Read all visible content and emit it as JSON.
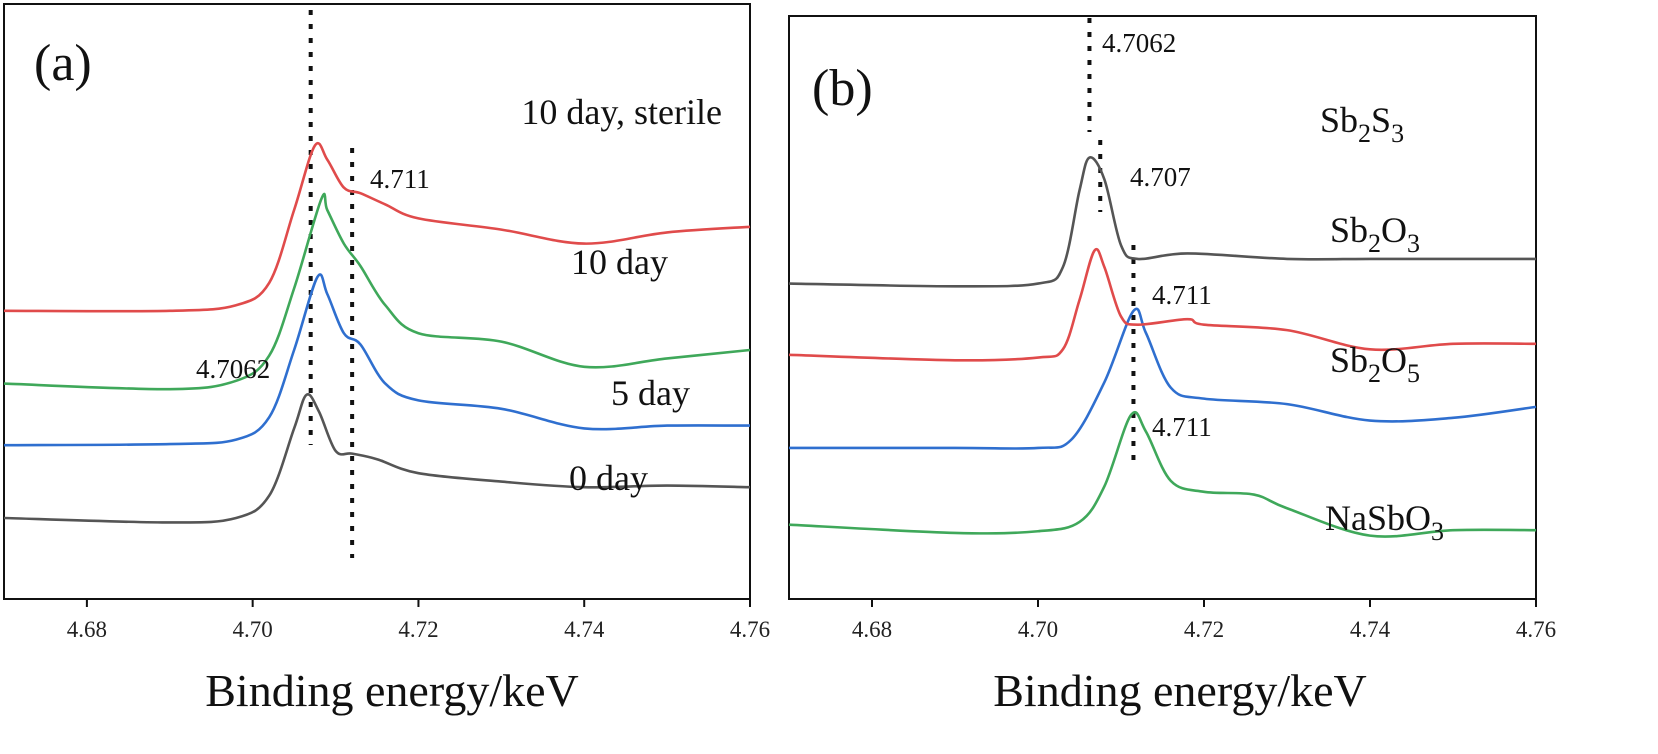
{
  "chart_data": [
    {
      "type": "line",
      "panel_label": "(a)",
      "xlabel": "Binding energy/keV",
      "ylabel": "",
      "xlim": [
        4.67,
        4.76
      ],
      "x_ticks": [
        4.68,
        4.7,
        4.72,
        4.74,
        4.76
      ],
      "x_tick_labels": [
        "4.68",
        "4.70",
        "4.72",
        "4.74",
        "4.76"
      ],
      "y_units": "normalized absorption (stacked, offsets applied)",
      "ylim": [
        0,
        10
      ],
      "series": [
        {
          "name": "0 day",
          "label": "0 day",
          "color": "#555555",
          "points": [
            [
              4.67,
              1.0
            ],
            [
              4.69,
              0.92
            ],
            [
              4.698,
              1.0
            ],
            [
              4.702,
              1.4
            ],
            [
              4.705,
              2.6
            ],
            [
              4.7065,
              3.2
            ],
            [
              4.708,
              2.9
            ],
            [
              4.71,
              2.2
            ],
            [
              4.712,
              2.15
            ],
            [
              4.715,
              2.05
            ],
            [
              4.72,
              1.8
            ],
            [
              4.73,
              1.65
            ],
            [
              4.74,
              1.55
            ],
            [
              4.75,
              1.58
            ],
            [
              4.76,
              1.55
            ]
          ]
        },
        {
          "name": "5 day",
          "label": "5 day",
          "color": "#2f6fcf",
          "points": [
            [
              4.67,
              2.3
            ],
            [
              4.69,
              2.32
            ],
            [
              4.698,
              2.4
            ],
            [
              4.702,
              2.8
            ],
            [
              4.705,
              4.0
            ],
            [
              4.7078,
              5.3
            ],
            [
              4.709,
              5.0
            ],
            [
              4.711,
              4.3
            ],
            [
              4.713,
              4.1
            ],
            [
              4.716,
              3.4
            ],
            [
              4.72,
              3.1
            ],
            [
              4.73,
              2.95
            ],
            [
              4.74,
              2.6
            ],
            [
              4.75,
              2.65
            ],
            [
              4.76,
              2.65
            ]
          ]
        },
        {
          "name": "10 day",
          "label": "10 day",
          "color": "#3fa85a",
          "points": [
            [
              4.67,
              3.4
            ],
            [
              4.69,
              3.3
            ],
            [
              4.698,
              3.45
            ],
            [
              4.702,
              3.9
            ],
            [
              4.705,
              5.1
            ],
            [
              4.7083,
              6.7
            ],
            [
              4.709,
              6.5
            ],
            [
              4.711,
              5.9
            ],
            [
              4.713,
              5.5
            ],
            [
              4.716,
              4.8
            ],
            [
              4.72,
              4.3
            ],
            [
              4.73,
              4.15
            ],
            [
              4.74,
              3.7
            ],
            [
              4.75,
              3.85
            ],
            [
              4.76,
              4.0
            ]
          ]
        },
        {
          "name": "10 day, sterile",
          "label": "10 day, sterile",
          "color": "#e04b4b",
          "points": [
            [
              4.67,
              4.7
            ],
            [
              4.69,
              4.7
            ],
            [
              4.698,
              4.8
            ],
            [
              4.702,
              5.2
            ],
            [
              4.705,
              6.5
            ],
            [
              4.7075,
              7.65
            ],
            [
              4.709,
              7.4
            ],
            [
              4.711,
              6.9
            ],
            [
              4.713,
              6.8
            ],
            [
              4.716,
              6.6
            ],
            [
              4.72,
              6.35
            ],
            [
              4.73,
              6.15
            ],
            [
              4.74,
              5.9
            ],
            [
              4.75,
              6.1
            ],
            [
              4.76,
              6.2
            ]
          ]
        }
      ],
      "annotations": [
        {
          "text": "4.7062",
          "x": 4.7062
        },
        {
          "text": "4.711",
          "x": 4.711
        }
      ],
      "ref_lines": [
        4.707,
        4.712
      ]
    },
    {
      "type": "line",
      "panel_label": "(b)",
      "xlabel": "Binding energy/keV",
      "ylabel": "",
      "xlim": [
        4.67,
        4.76
      ],
      "x_ticks": [
        4.68,
        4.7,
        4.72,
        4.74,
        4.76
      ],
      "x_tick_labels": [
        "4.68",
        "4.70",
        "4.72",
        "4.74",
        "4.76"
      ],
      "y_units": "normalized absorption (stacked, offsets applied)",
      "ylim": [
        0,
        10
      ],
      "series": [
        {
          "name": "NaSbO3",
          "label_base": "NaSbO",
          "label_sub": "3",
          "label_sub2": "",
          "label_mid": "",
          "color": "#3fa85a",
          "points": [
            [
              4.67,
              0.9
            ],
            [
              4.69,
              0.75
            ],
            [
              4.7,
              0.78
            ],
            [
              4.705,
              0.95
            ],
            [
              4.708,
              1.6
            ],
            [
              4.7112,
              2.9
            ],
            [
              4.713,
              2.6
            ],
            [
              4.716,
              1.7
            ],
            [
              4.72,
              1.5
            ],
            [
              4.726,
              1.45
            ],
            [
              4.73,
              1.2
            ],
            [
              4.74,
              0.7
            ],
            [
              4.75,
              0.8
            ],
            [
              4.76,
              0.8
            ]
          ]
        },
        {
          "name": "Sb2O5",
          "label_base": "Sb",
          "label_sub": "2",
          "label_mid": "O",
          "label_sub2": "5",
          "color": "#2f6fcf",
          "points": [
            [
              4.67,
              2.3
            ],
            [
              4.69,
              2.3
            ],
            [
              4.7,
              2.3
            ],
            [
              4.704,
              2.45
            ],
            [
              4.708,
              3.5
            ],
            [
              4.7115,
              4.8
            ],
            [
              4.713,
              4.4
            ],
            [
              4.716,
              3.4
            ],
            [
              4.72,
              3.2
            ],
            [
              4.73,
              3.1
            ],
            [
              4.74,
              2.8
            ],
            [
              4.75,
              2.85
            ],
            [
              4.76,
              3.05
            ]
          ]
        },
        {
          "name": "Sb2O3",
          "label_base": "Sb",
          "label_sub": "2",
          "label_mid": "O",
          "label_sub2": "3",
          "color": "#e04b4b",
          "points": [
            [
              4.67,
              4.0
            ],
            [
              4.69,
              3.9
            ],
            [
              4.7,
              3.95
            ],
            [
              4.703,
              4.1
            ],
            [
              4.705,
              5.0
            ],
            [
              4.7068,
              5.9
            ],
            [
              4.708,
              5.6
            ],
            [
              4.71,
              4.7
            ],
            [
              4.712,
              4.55
            ],
            [
              4.718,
              4.65
            ],
            [
              4.72,
              4.55
            ],
            [
              4.73,
              4.45
            ],
            [
              4.74,
              4.1
            ],
            [
              4.75,
              4.2
            ],
            [
              4.76,
              4.2
            ]
          ]
        },
        {
          "name": "Sb2S3",
          "label_base": "Sb",
          "label_sub": "2",
          "label_mid": "S",
          "label_sub2": "3",
          "color": "#555555",
          "points": [
            [
              4.67,
              5.3
            ],
            [
              4.69,
              5.25
            ],
            [
              4.7,
              5.3
            ],
            [
              4.703,
              5.6
            ],
            [
              4.705,
              7.0
            ],
            [
              4.7062,
              7.6
            ],
            [
              4.708,
              7.2
            ],
            [
              4.71,
              6.0
            ],
            [
              4.712,
              5.75
            ],
            [
              4.718,
              5.85
            ],
            [
              4.73,
              5.75
            ],
            [
              4.74,
              5.75
            ],
            [
              4.75,
              5.75
            ],
            [
              4.76,
              5.75
            ]
          ]
        }
      ],
      "annotations": [
        {
          "text": "4.7062",
          "x": 4.7062
        },
        {
          "text": "4.707",
          "x": 4.707
        },
        {
          "text": "4.711",
          "x": 4.711
        },
        {
          "text": "4.711",
          "x": 4.711
        }
      ],
      "ref_lines": [
        4.7062,
        4.7075,
        4.7115
      ]
    }
  ]
}
